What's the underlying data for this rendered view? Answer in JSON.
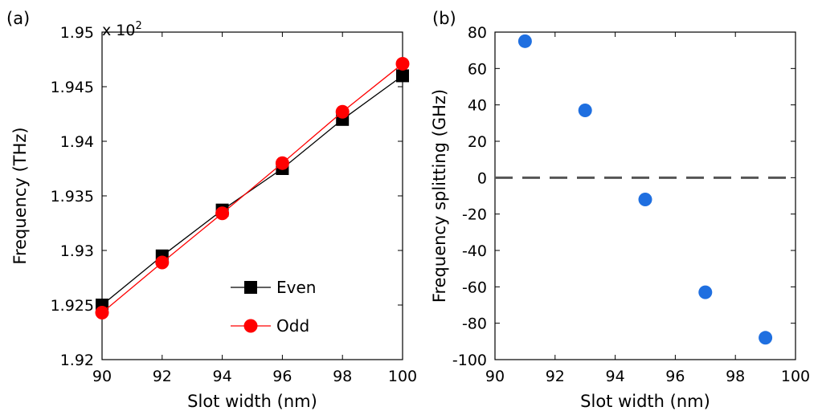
{
  "panels": {
    "a": {
      "label": "(a)"
    },
    "b": {
      "label": "(b)"
    }
  },
  "chart_data": [
    {
      "type": "line",
      "panel": "(a)",
      "title": "",
      "xlabel": "Slot width (nm)",
      "ylabel": "Frequency (THz)",
      "y_multiplier_label": "x 10",
      "y_multiplier_exponent": "2",
      "xlim": [
        90,
        100
      ],
      "ylim": [
        1.92,
        1.95
      ],
      "xticks": [
        "90",
        "92",
        "94",
        "96",
        "98",
        "100"
      ],
      "yticks": [
        "1.92",
        "1.925",
        "1.93",
        "1.935",
        "1.94",
        "1.945",
        "1.95"
      ],
      "grid": false,
      "legend_position": "bottom-center",
      "x": [
        90,
        92,
        94,
        96,
        98,
        100
      ],
      "series": [
        {
          "name": "Even",
          "color": "#000000",
          "marker": "square",
          "values": [
            1.925,
            1.9295,
            1.9337,
            1.9375,
            1.942,
            1.946
          ]
        },
        {
          "name": "Odd",
          "color": "#ff0000",
          "marker": "circle",
          "values": [
            1.9243,
            1.9289,
            1.9334,
            1.938,
            1.9427,
            1.9471
          ]
        }
      ]
    },
    {
      "type": "scatter",
      "panel": "(b)",
      "title": "",
      "xlabel": "Slot width (nm)",
      "ylabel": "Frequency splitting (GHz)",
      "xlim": [
        90,
        100
      ],
      "ylim": [
        -100,
        80
      ],
      "xticks": [
        "90",
        "92",
        "94",
        "96",
        "98",
        "100"
      ],
      "yticks": [
        "-100",
        "-80",
        "-60",
        "-40",
        "-20",
        "0",
        "20",
        "40",
        "60",
        "80"
      ],
      "grid": false,
      "reference_line": {
        "y": 0,
        "style": "dashed",
        "color": "#555555"
      },
      "series": [
        {
          "color": "#1f6fe0",
          "marker": "circle",
          "x": [
            91,
            93,
            95,
            97,
            99
          ],
          "values": [
            75,
            37,
            -12,
            -63,
            -88
          ]
        }
      ]
    }
  ]
}
